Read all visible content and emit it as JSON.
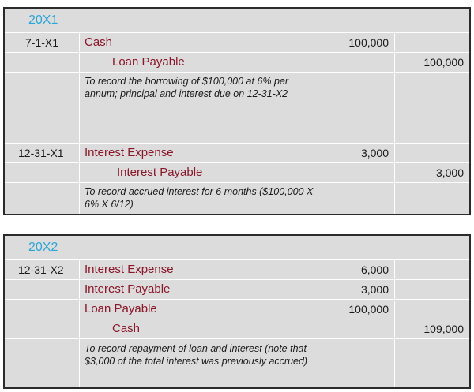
{
  "journal_1": {
    "year": "20X1",
    "entry_1": {
      "date": "7-1-X1",
      "debit_account": "Cash",
      "debit_amount": "100,000",
      "credit_account": "Loan Payable",
      "credit_amount": "100,000",
      "memo": "To record the borrowing of $100,000 at 6% per annum; principal and interest due on 12-31-X2"
    },
    "entry_2": {
      "date": "12-31-X1",
      "debit_account": "Interest Expense",
      "debit_amount": "3,000",
      "credit_account": "Interest Payable",
      "credit_amount": "3,000",
      "memo": "To record accrued interest for 6 months ($100,000 X 6% X 6/12)"
    }
  },
  "journal_2": {
    "year": "20X2",
    "entry_1": {
      "date": "12-31-X2",
      "debit_1_account": "Interest Expense",
      "debit_1_amount": "6,000",
      "debit_2_account": "Interest Payable",
      "debit_2_amount": "3,000",
      "debit_3_account": "Loan Payable",
      "debit_3_amount": "100,000",
      "credit_account": "Cash",
      "credit_amount": "109,000",
      "memo": "To record repayment of loan and interest (note that $3,000 of the total interest was previously accrued)"
    }
  }
}
